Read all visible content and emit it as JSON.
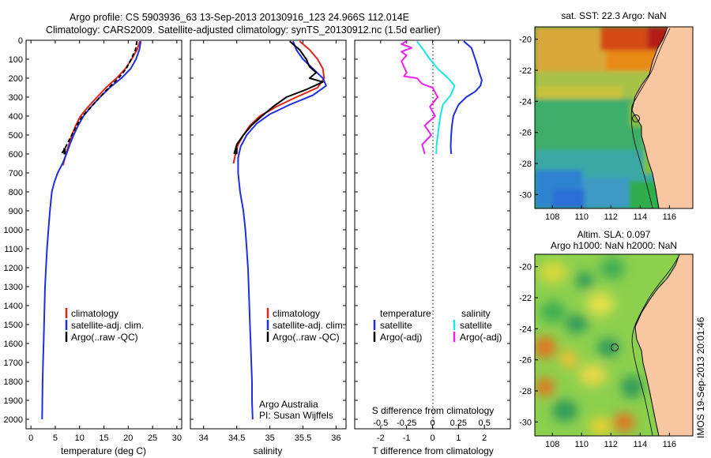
{
  "header": {
    "title_line1": "Argo profile: CS 5903936_63 13-Sep-2013 20130916_123 24.966S 112.014E",
    "title_line2": "Climatology: CARS2009. Satellite-adjusted climatology: synTS_20130912.nc (1.5d earlier)"
  },
  "colors": {
    "climatology": "#e0241b",
    "satellite": "#1f2fe0",
    "argo": "#000000",
    "sal_satellite": "#19e6e6",
    "sal_argo": "#ee22ee",
    "land": "#f8c7a2"
  },
  "chart_data": [
    {
      "type": "line",
      "xlabel": "temperature (deg C)",
      "ylim": [
        0,
        2050
      ],
      "xlim": [
        -1,
        31
      ],
      "xticks": [
        0,
        5,
        10,
        15,
        20,
        25,
        30
      ],
      "yticks": [
        0,
        100,
        200,
        300,
        400,
        500,
        600,
        700,
        800,
        900,
        1000,
        1100,
        1200,
        1300,
        1400,
        1500,
        1600,
        1700,
        1800,
        1900,
        2000
      ],
      "legend": [
        "climatology",
        "satellite-adj. clim.",
        "Argo(..raw -QC)"
      ],
      "series": [
        {
          "name": "climatology",
          "color_key": "climatology",
          "points": [
            [
              22.4,
              5
            ],
            [
              21.8,
              50
            ],
            [
              20.7,
              100
            ],
            [
              19.4,
              150
            ],
            [
              17.6,
              200
            ],
            [
              15.4,
              250
            ],
            [
              13.6,
              300
            ],
            [
              11.8,
              350
            ],
            [
              10.2,
              400
            ],
            [
              9.2,
              450
            ],
            [
              8.4,
              500
            ],
            [
              7.8,
              550
            ],
            [
              7.2,
              600
            ],
            [
              6.6,
              660
            ]
          ]
        },
        {
          "name": "satellite-adj. clim.",
          "color_key": "satellite",
          "points": [
            [
              22.6,
              5
            ],
            [
              22.3,
              50
            ],
            [
              21.6,
              100
            ],
            [
              20.5,
              150
            ],
            [
              18.6,
              200
            ],
            [
              16.2,
              250
            ],
            [
              14.2,
              300
            ],
            [
              12.4,
              350
            ],
            [
              10.8,
              400
            ],
            [
              9.7,
              450
            ],
            [
              8.8,
              500
            ],
            [
              8.0,
              550
            ],
            [
              7.3,
              600
            ],
            [
              6.5,
              650
            ],
            [
              5.5,
              700
            ],
            [
              4.8,
              750
            ],
            [
              4.3,
              800
            ],
            [
              3.9,
              900
            ],
            [
              3.6,
              1000
            ],
            [
              3.3,
              1100
            ],
            [
              3.1,
              1200
            ],
            [
              2.9,
              1300
            ],
            [
              2.8,
              1400
            ],
            [
              2.7,
              1500
            ],
            [
              2.6,
              1600
            ],
            [
              2.5,
              1700
            ],
            [
              2.4,
              1800
            ],
            [
              2.35,
              1900
            ],
            [
              2.3,
              2000
            ]
          ]
        },
        {
          "name": "Argo(..raw -QC)",
          "color_key": "argo",
          "dashed": true,
          "points": [
            [
              21.8,
              5
            ],
            [
              21.5,
              50
            ],
            [
              20.6,
              100
            ],
            [
              19.6,
              150
            ],
            [
              18.0,
              200
            ],
            [
              16.0,
              250
            ],
            [
              14.2,
              300
            ],
            [
              12.4,
              350
            ],
            [
              10.6,
              400
            ],
            [
              9.4,
              450
            ],
            [
              8.4,
              500
            ],
            [
              7.4,
              550
            ],
            [
              6.8,
              580
            ],
            [
              6.2,
              600
            ]
          ]
        }
      ]
    },
    {
      "type": "line",
      "xlabel": "salinity",
      "ylim": [
        0,
        2050
      ],
      "xlim": [
        33.8,
        36.15
      ],
      "xticks": [
        34,
        34.5,
        35,
        35.5,
        36
      ],
      "legend": [
        "climatology",
        "satellite-adj. clim.",
        "Argo(..raw -QC)"
      ],
      "annotation": [
        "Argo Australia",
        "PI: Susan Wijffels"
      ],
      "series": [
        {
          "name": "climatology",
          "color_key": "climatology",
          "points": [
            [
              35.45,
              5
            ],
            [
              35.6,
              50
            ],
            [
              35.72,
              100
            ],
            [
              35.8,
              150
            ],
            [
              35.82,
              200
            ],
            [
              35.72,
              250
            ],
            [
              35.4,
              300
            ],
            [
              35.1,
              350
            ],
            [
              34.85,
              400
            ],
            [
              34.7,
              450
            ],
            [
              34.6,
              500
            ],
            [
              34.52,
              550
            ],
            [
              34.48,
              600
            ],
            [
              34.45,
              650
            ]
          ]
        },
        {
          "name": "satellite-adj. clim.",
          "color_key": "satellite",
          "points": [
            [
              35.35,
              5
            ],
            [
              35.4,
              50
            ],
            [
              35.5,
              100
            ],
            [
              35.65,
              150
            ],
            [
              35.8,
              200
            ],
            [
              35.85,
              240
            ],
            [
              35.65,
              290
            ],
            [
              35.3,
              340
            ],
            [
              35.0,
              390
            ],
            [
              34.8,
              440
            ],
            [
              34.65,
              500
            ],
            [
              34.56,
              560
            ],
            [
              34.52,
              620
            ],
            [
              34.52,
              700
            ],
            [
              34.55,
              800
            ],
            [
              34.6,
              900
            ],
            [
              34.63,
              1000
            ],
            [
              34.65,
              1100
            ],
            [
              34.67,
              1200
            ],
            [
              34.68,
              1300
            ],
            [
              34.69,
              1400
            ],
            [
              34.7,
              1500
            ],
            [
              34.71,
              1600
            ],
            [
              34.72,
              1700
            ],
            [
              34.73,
              1800
            ],
            [
              34.73,
              1900
            ],
            [
              34.74,
              2000
            ]
          ]
        },
        {
          "name": "Argo(..raw -QC)",
          "color_key": "argo",
          "points": [
            [
              35.3,
              5
            ],
            [
              35.45,
              50
            ],
            [
              35.55,
              100
            ],
            [
              35.6,
              140
            ],
            [
              35.7,
              170
            ],
            [
              35.6,
              200
            ],
            [
              35.8,
              220
            ],
            [
              35.55,
              260
            ],
            [
              35.25,
              300
            ],
            [
              35.05,
              350
            ],
            [
              34.88,
              400
            ],
            [
              34.72,
              450
            ],
            [
              34.6,
              500
            ],
            [
              34.5,
              550
            ],
            [
              34.46,
              600
            ]
          ]
        }
      ]
    },
    {
      "type": "line",
      "xlabel_top": "S difference from climatology",
      "xlabel": "T difference from climatology",
      "ylim": [
        0,
        2050
      ],
      "xlim": [
        -3,
        3
      ],
      "xticks": [
        -2,
        -1,
        0,
        1,
        2
      ],
      "xticks_top_labels": [
        "-0.5",
        "-0.25",
        "0",
        "0.25",
        "0.5"
      ],
      "legend_left_title": "temperature",
      "legend_right_title": "salinity",
      "legend": [
        "satellite",
        "Argo(-adj)",
        "satellite",
        "Argo(-adj)"
      ],
      "series": [
        {
          "name": "satellite",
          "color_key": "satellite",
          "points": [
            [
              1.2,
              5
            ],
            [
              1.5,
              40
            ],
            [
              1.6,
              80
            ],
            [
              1.7,
              120
            ],
            [
              1.8,
              170
            ],
            [
              1.9,
              210
            ],
            [
              1.85,
              240
            ],
            [
              1.65,
              270
            ],
            [
              1.3,
              300
            ],
            [
              1.0,
              340
            ],
            [
              0.8,
              400
            ],
            [
              0.75,
              450
            ],
            [
              0.72,
              500
            ],
            [
              0.7,
              560
            ],
            [
              0.72,
              600
            ]
          ]
        },
        {
          "name": "satellite (salinity)",
          "color_key": "sal_satellite",
          "points": [
            [
              -0.6,
              5
            ],
            [
              -0.3,
              60
            ],
            [
              -0.1,
              100
            ],
            [
              0.2,
              150
            ],
            [
              0.6,
              200
            ],
            [
              0.85,
              240
            ],
            [
              0.7,
              290
            ],
            [
              0.4,
              340
            ],
            [
              0.3,
              400
            ],
            [
              0.25,
              450
            ],
            [
              0.2,
              500
            ],
            [
              0.15,
              560
            ],
            [
              0.15,
              600
            ]
          ]
        },
        {
          "name": "Argo(-adj) (salinity)",
          "color_key": "sal_argo",
          "points": [
            [
              -1.0,
              5
            ],
            [
              -1.2,
              20
            ],
            [
              -0.8,
              40
            ],
            [
              -1.2,
              60
            ],
            [
              -1.0,
              80
            ],
            [
              -1.2,
              110
            ],
            [
              -1.1,
              140
            ],
            [
              -1.0,
              170
            ],
            [
              -1.1,
              190
            ],
            [
              -0.6,
              200
            ],
            [
              -0.4,
              230
            ],
            [
              0.0,
              250
            ],
            [
              0.2,
              300
            ],
            [
              -0.1,
              350
            ],
            [
              0.1,
              400
            ],
            [
              -0.3,
              450
            ],
            [
              -0.05,
              500
            ],
            [
              -0.4,
              550
            ],
            [
              -0.3,
              600
            ]
          ]
        }
      ]
    }
  ],
  "maps": {
    "sst": {
      "title": "sat. SST: 22.3  Argo: NaN",
      "xticks": [
        "108",
        "110",
        "112",
        "114",
        "116"
      ],
      "yticks": [
        "-20",
        "-22",
        "-24",
        "-26",
        "-28",
        "-30"
      ]
    },
    "sla": {
      "title_line1": "Altim. SLA: 0.097",
      "title_line2": "Argo h1000: NaN h2000: NaN",
      "xticks": [
        "108",
        "110",
        "112",
        "114",
        "116"
      ],
      "yticks": [
        "-20",
        "-22",
        "-24",
        "-26",
        "-28",
        "-30"
      ]
    }
  },
  "footer": {
    "vertical_stamp": "IMOS 19-Sep-2013 20:01:46"
  }
}
